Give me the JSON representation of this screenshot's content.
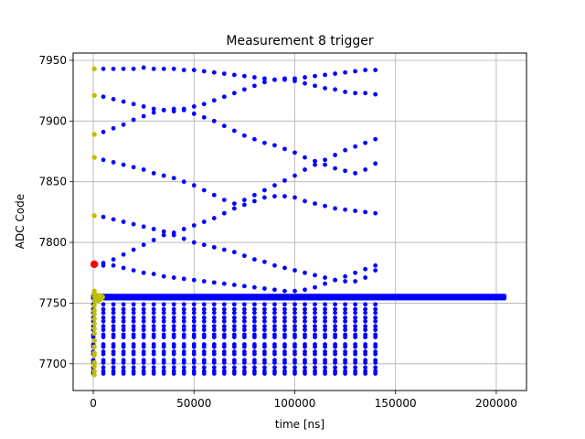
{
  "chart_data": {
    "type": "scatter",
    "title": "Measurement 8 trigger",
    "xlabel": "time [ns]",
    "ylabel": "ADC Code",
    "xlim": [
      -10000,
      215000
    ],
    "ylim": [
      7678,
      7956
    ],
    "xticks": [
      0,
      50000,
      100000,
      150000,
      200000
    ],
    "yticks": [
      7700,
      7750,
      7800,
      7850,
      7900,
      7950
    ],
    "grid": true,
    "colors": {
      "main": "#0000ff",
      "trigger": "#bfbf00",
      "marker": "#ff0000"
    },
    "series": [
      {
        "role": "baseline-dense",
        "color": "#0000ff",
        "x_start": 0,
        "x_end": 204000,
        "x_step": 1000,
        "y_levels": [
          7754,
          7755,
          7756
        ]
      },
      {
        "role": "comb-low",
        "color": "#0000ff",
        "x_start": 0,
        "x_end": 140000,
        "x_step": 5000,
        "y_levels": [
          7692,
          7694,
          7697,
          7701,
          7703,
          7708,
          7710,
          7714,
          7716,
          7722,
          7724,
          7728,
          7731,
          7735,
          7738,
          7742,
          7745,
          7749
        ]
      },
      {
        "role": "trajectories",
        "color": "#0000ff",
        "x": [
          5000,
          10000,
          15000,
          20000,
          25000,
          30000,
          35000,
          40000,
          45000,
          50000,
          55000,
          60000,
          65000,
          70000,
          75000,
          80000,
          85000,
          90000,
          95000,
          100000,
          105000,
          110000,
          115000,
          120000,
          125000,
          130000,
          135000,
          140000
        ],
        "lines": [
          [
            7943,
            7943,
            7943,
            7943,
            7944,
            7943,
            7943,
            7943,
            7942,
            7942,
            7941,
            7940,
            7939,
            7938,
            7937,
            7936,
            7935,
            7934,
            7934,
            7933,
            7931,
            7929,
            7927,
            7926,
            7924,
            7923,
            7923,
            7922
          ],
          [
            7920,
            7918,
            7916,
            7914,
            7912,
            7910,
            7909,
            7908,
            7910,
            7912,
            7914,
            7917,
            7920,
            7923,
            7926,
            7929,
            7932,
            7934,
            7935,
            7935,
            7936,
            7937,
            7938,
            7939,
            7940,
            7941,
            7942,
            7942
          ],
          [
            7891,
            7894,
            7897,
            7901,
            7904,
            7907,
            7909,
            7910,
            7909,
            7906,
            7903,
            7900,
            7896,
            7892,
            7888,
            7885,
            7882,
            7880,
            7877,
            7874,
            7870,
            7867,
            7864,
            7861,
            7859,
            7857,
            7860,
            7865
          ],
          [
            7868,
            7866,
            7864,
            7862,
            7860,
            7857,
            7855,
            7853,
            7850,
            7847,
            7843,
            7839,
            7835,
            7832,
            7835,
            7839,
            7843,
            7847,
            7851,
            7855,
            7860,
            7864,
            7868,
            7872,
            7876,
            7879,
            7882,
            7885
          ],
          [
            7821,
            7819,
            7817,
            7815,
            7813,
            7811,
            7809,
            7808,
            7811,
            7814,
            7817,
            7820,
            7824,
            7828,
            7831,
            7834,
            7837,
            7838,
            7838,
            7837,
            7834,
            7832,
            7830,
            7828,
            7827,
            7826,
            7825,
            7824
          ],
          [
            7781,
            7786,
            7790,
            7794,
            7798,
            7802,
            7806,
            7806,
            7803,
            7800,
            7798,
            7796,
            7794,
            7792,
            7789,
            7786,
            7784,
            7781,
            7779,
            7777,
            7775,
            7773,
            7771,
            7769,
            7768,
            7768,
            7771,
            7777
          ],
          [
            7783,
            7781,
            7779,
            7777,
            7775,
            7774,
            7772,
            7771,
            7770,
            7769,
            7768,
            7767,
            7766,
            7765,
            7764,
            7763,
            7762,
            7761,
            7760,
            7760,
            7761,
            7763,
            7766,
            7769,
            7772,
            7775,
            7778,
            7781
          ]
        ]
      },
      {
        "role": "trigger-column",
        "color": "#bfbf00",
        "x": 500,
        "y": [
          7943,
          7921,
          7889,
          7870,
          7822,
          7760,
          7758,
          7756,
          7752,
          7748,
          7744,
          7741,
          7737,
          7733,
          7729,
          7725,
          7719,
          7714,
          7709,
          7707,
          7701,
          7698,
          7694,
          7691
        ]
      },
      {
        "role": "trigger-cluster",
        "color": "#bfbf00",
        "x": [
          1000,
          1500,
          2000,
          2500,
          3000,
          3500,
          4000,
          4500,
          1200,
          2200,
          3200
        ],
        "y": [
          7755,
          7756,
          7754,
          7756,
          7755,
          7756,
          7754,
          7755,
          7753,
          7752,
          7753
        ]
      },
      {
        "role": "marker",
        "color": "#ff0000",
        "x": [
          500
        ],
        "y": [
          7782
        ]
      }
    ]
  }
}
